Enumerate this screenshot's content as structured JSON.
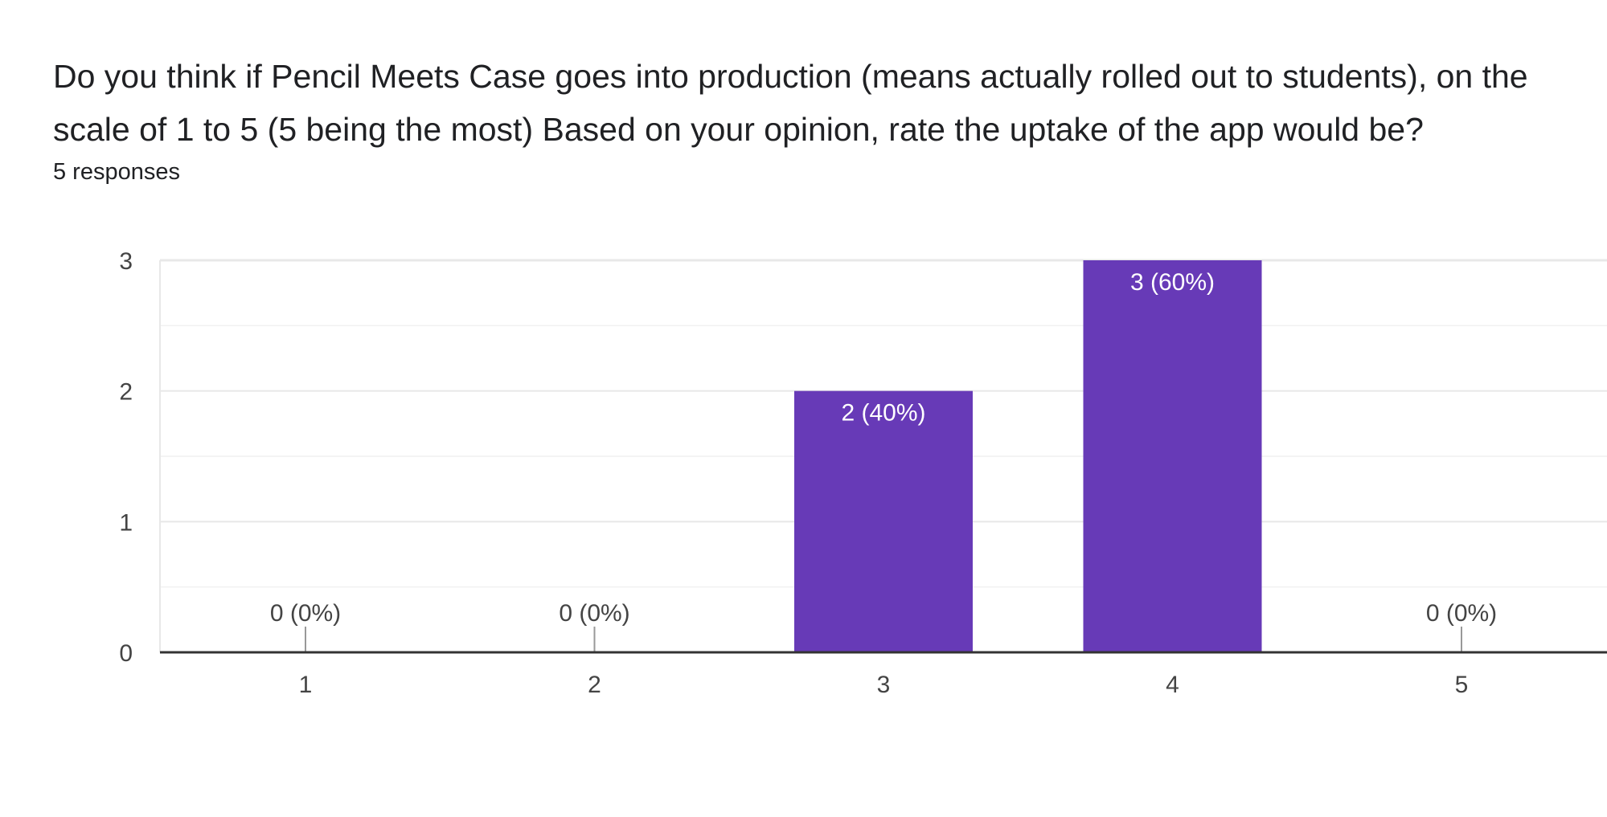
{
  "question": {
    "title": "Do you think if Pencil Meets Case goes into production (means actually rolled out to students), on the scale of 1 to 5 (5 being the most) Based on your opinion, rate the uptake of the app would be?",
    "responses_label": "5 responses"
  },
  "colors": {
    "bar": "#673ab7",
    "gridline": "#e8e8e8",
    "axis": "#333333",
    "tick_text": "#444444",
    "bar_label_inside": "#ffffff",
    "bar_label_outside": "#444444",
    "zero_tick": "#999999"
  },
  "chart_data": {
    "type": "bar",
    "categories": [
      "1",
      "2",
      "3",
      "4",
      "5"
    ],
    "values": [
      0,
      0,
      2,
      3,
      0
    ],
    "data_labels": [
      "0 (0%)",
      "0 (0%)",
      "2 (40%)",
      "3 (60%)",
      "0 (0%)"
    ],
    "ylim": [
      0,
      3
    ],
    "yticks": [
      0,
      1,
      2,
      3
    ],
    "title": "",
    "xlabel": "",
    "ylabel": "",
    "grid": true,
    "legend": "none"
  }
}
